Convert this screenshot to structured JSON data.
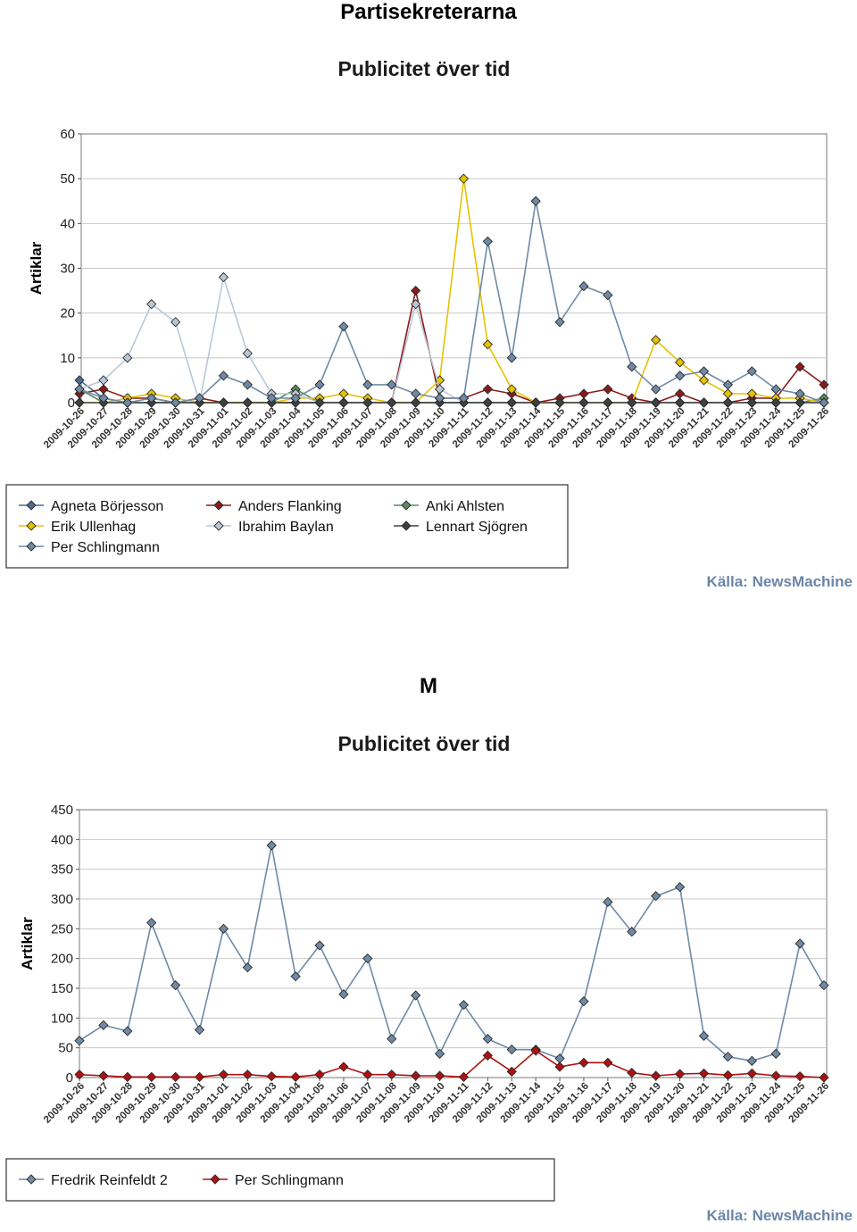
{
  "headings": {
    "top": "Partisekreterarna",
    "bottom": "M"
  },
  "dates": [
    "2009-10-26",
    "2009-10-27",
    "2009-10-28",
    "2009-10-29",
    "2009-10-30",
    "2009-10-31",
    "2009-11-01",
    "2009-11-02",
    "2009-11-03",
    "2009-11-04",
    "2009-11-05",
    "2009-11-06",
    "2009-11-07",
    "2009-11-08",
    "2009-11-09",
    "2009-11-10",
    "2009-11-11",
    "2009-11-12",
    "2009-11-13",
    "2009-11-14",
    "2009-11-15",
    "2009-11-16",
    "2009-11-17",
    "2009-11-18",
    "2009-11-19",
    "2009-11-20",
    "2009-11-21",
    "2009-11-22",
    "2009-11-23",
    "2009-11-24",
    "2009-11-25",
    "2009-11-26"
  ],
  "chart_data": [
    {
      "type": "line",
      "title": "Publicitet över tid",
      "ylabel": "Artiklar",
      "xlabel": "",
      "ylim": [
        0,
        60
      ],
      "yticks": [
        0,
        10,
        20,
        30,
        40,
        50,
        60
      ],
      "grid": true,
      "legend_position": "bottom",
      "source": "Källa: NewsMachine",
      "series": [
        {
          "name": "Agneta Börjesson",
          "color": "#4d6c8c",
          "values": [
            5,
            1,
            0,
            0,
            0,
            0,
            0,
            0,
            0,
            0,
            0,
            0,
            0,
            0,
            0,
            0,
            0,
            0,
            0,
            0,
            0,
            0,
            0,
            0,
            0,
            0,
            0,
            0,
            0,
            0,
            0,
            0
          ]
        },
        {
          "name": "Anders Flanking",
          "color": "#8b1a1a",
          "values": [
            2,
            3,
            1,
            1,
            0,
            1,
            0,
            0,
            0,
            0,
            0,
            0,
            0,
            0,
            25,
            1,
            1,
            3,
            2,
            0,
            1,
            2,
            3,
            1,
            0,
            2,
            0,
            0,
            1,
            1,
            8,
            4
          ]
        },
        {
          "name": "Anki Ahlsten",
          "color": "#5a8a5a",
          "values": [
            3,
            0,
            0,
            0,
            0,
            0,
            0,
            0,
            0,
            3,
            0,
            0,
            0,
            0,
            0,
            0,
            0,
            0,
            0,
            0,
            0,
            0,
            0,
            0,
            0,
            0,
            0,
            0,
            0,
            0,
            0,
            1
          ]
        },
        {
          "name": "Erik Ullenhag",
          "color": "#e6c200",
          "values": [
            0,
            0,
            1,
            2,
            1,
            0,
            0,
            0,
            0,
            1,
            1,
            2,
            1,
            0,
            0,
            5,
            50,
            13,
            3,
            0,
            0,
            0,
            0,
            0,
            14,
            9,
            5,
            2,
            2,
            1,
            1,
            0
          ]
        },
        {
          "name": "Ibrahim Baylan",
          "color": "#b8c8d8",
          "values": [
            3,
            5,
            10,
            22,
            18,
            0,
            28,
            11,
            2,
            2,
            0,
            0,
            0,
            0,
            22,
            3,
            0,
            0,
            0,
            0,
            0,
            0,
            0,
            0,
            0,
            0,
            0,
            0,
            0,
            0,
            0,
            0
          ]
        },
        {
          "name": "Lennart Sjögren",
          "color": "#404040",
          "values": [
            0,
            0,
            0,
            0,
            0,
            0,
            0,
            0,
            0,
            0,
            0,
            0,
            0,
            0,
            0,
            0,
            0,
            0,
            0,
            0,
            0,
            0,
            0,
            0,
            0,
            0,
            0,
            0,
            0,
            0,
            0,
            0
          ]
        },
        {
          "name": "Per Schlingmann",
          "color": "#6f8aa6",
          "values": [
            3,
            1,
            0,
            1,
            0,
            1,
            6,
            4,
            1,
            1,
            4,
            17,
            4,
            4,
            2,
            1,
            1,
            36,
            10,
            45,
            18,
            26,
            24,
            8,
            3,
            6,
            7,
            4,
            7,
            3,
            2,
            0
          ]
        }
      ]
    },
    {
      "type": "line",
      "title": "Publicitet över tid",
      "ylabel": "Artiklar",
      "xlabel": "",
      "ylim": [
        0,
        450
      ],
      "yticks": [
        0,
        50,
        100,
        150,
        200,
        250,
        300,
        350,
        400,
        450
      ],
      "grid": true,
      "legend_position": "bottom",
      "source": "Källa: NewsMachine",
      "series": [
        {
          "name": "Fredrik Reinfeldt 2",
          "color": "#6f8aa6",
          "values": [
            62,
            88,
            78,
            260,
            155,
            80,
            250,
            185,
            390,
            170,
            222,
            140,
            200,
            65,
            138,
            40,
            122,
            65,
            47,
            47,
            32,
            128,
            295,
            245,
            305,
            320,
            70,
            35,
            28,
            40,
            225,
            155
          ]
        },
        {
          "name": "Per Schlingmann",
          "color": "#b01010",
          "values": [
            5,
            3,
            1,
            1,
            1,
            1,
            5,
            5,
            2,
            1,
            5,
            18,
            5,
            5,
            3,
            3,
            1,
            37,
            10,
            45,
            18,
            25,
            25,
            8,
            3,
            6,
            7,
            4,
            7,
            3,
            2,
            0
          ]
        }
      ]
    }
  ]
}
